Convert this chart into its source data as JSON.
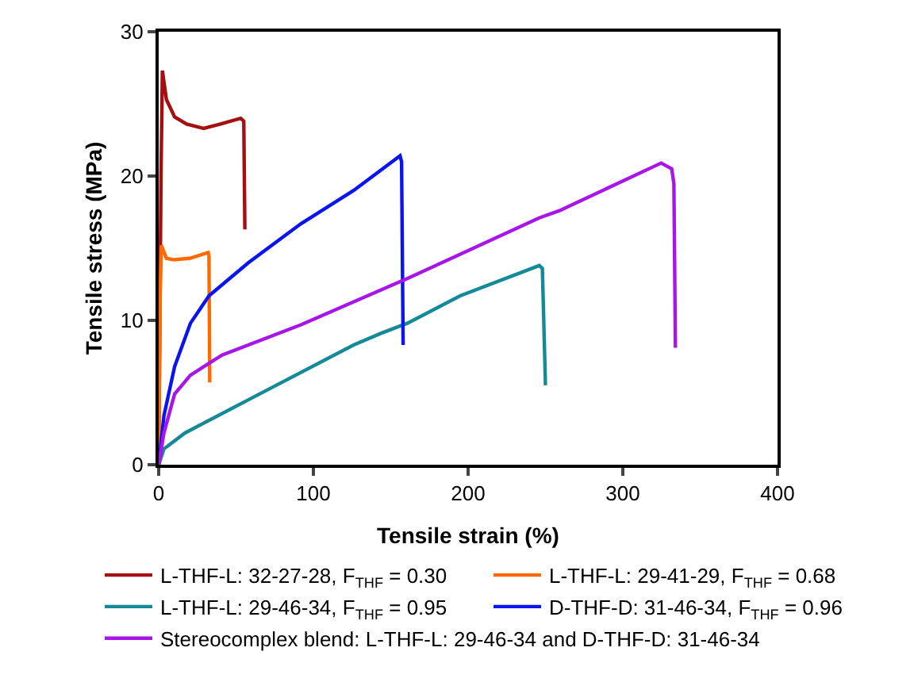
{
  "chart_data": {
    "type": "line",
    "xlabel": "Tensile strain (%)",
    "ylabel": "Tensile stress (MPa)",
    "xlim": [
      0,
      400
    ],
    "xticks": [
      0,
      100,
      200,
      300,
      400
    ],
    "ylim": [
      0,
      30
    ],
    "yticks": [
      0,
      10,
      20,
      30
    ],
    "grid": false,
    "legend": "bottom",
    "marker": "none",
    "line_style": "solid",
    "series": [
      {
        "name": "L-THF-L: 32-27-28, F$_{THF}$ = 0.30",
        "color": "#a50f0f",
        "x": [
          0,
          1.5,
          2.4,
          5,
          10.3,
          18,
          29,
          40,
          53,
          55,
          55.7
        ],
        "values": [
          0,
          20,
          27.3,
          25.3,
          24.1,
          23.6,
          23.3,
          23.6,
          24.0,
          23.8,
          16.3
        ]
      },
      {
        "name": "L-THF-L: 29-41-29, F$_{THF}$ = 0.68",
        "color": "#ff6a00",
        "x": [
          0,
          1,
          1.7,
          5,
          10,
          20,
          32,
          32.5,
          33
        ],
        "values": [
          0,
          12,
          15.2,
          14.3,
          14.2,
          14.3,
          14.7,
          14.5,
          5.7
        ]
      },
      {
        "name": "L-THF-L: 29-46-34, F$_{THF}$ = 0.95",
        "color": "#148a99",
        "x": [
          0,
          3.4,
          17,
          58,
          126,
          143.6,
          160.7,
          194.9,
          246,
          248,
          250
        ],
        "values": [
          0,
          1.1,
          2.2,
          4.5,
          8.3,
          9.1,
          9.8,
          11.7,
          13.8,
          13.6,
          5.5
        ]
      },
      {
        "name": "D-THF-D: 31-46-34, F$_{THF}$ = 0.96",
        "color": "#0a14f0",
        "x": [
          0,
          3.4,
          10.3,
          20.5,
          32.5,
          58,
          92,
          126,
          156,
          157,
          158
        ],
        "values": [
          0,
          3.4,
          6.8,
          9.8,
          11.7,
          14.0,
          16.7,
          19.0,
          21.4,
          21.0,
          8.3
        ]
      },
      {
        "name": "Stereocomplex blend: L-THF-L: 29-46-34 and D-THF-D: 31-46-34",
        "color": "#a815e8",
        "x": [
          0,
          3.4,
          10.3,
          20.5,
          41,
          92,
          160.7,
          246,
          259,
          324.8,
          331.6,
          333,
          334
        ],
        "values": [
          0,
          2.2,
          4.9,
          6.2,
          7.6,
          9.7,
          12.9,
          17.1,
          17.6,
          20.9,
          20.5,
          19.5,
          8.1
        ]
      }
    ]
  }
}
